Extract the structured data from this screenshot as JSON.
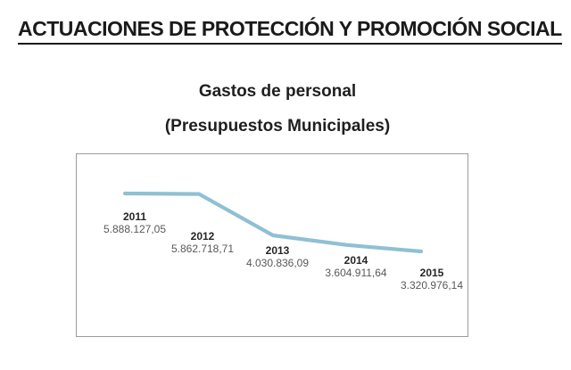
{
  "page": {
    "title": "ACTUACIONES DE PROTECCIÓN Y PROMOCIÓN SOCIAL",
    "subtitle1": "Gastos de personal",
    "subtitle2": "(Presupuestos Municipales)"
  },
  "chart_data": {
    "type": "line",
    "categories": [
      "2011",
      "2012",
      "2013",
      "2014",
      "2015"
    ],
    "values": [
      5888127.05,
      5862718.71,
      4030836.09,
      3604911.64,
      3320976.14
    ],
    "value_labels": [
      "5.888.127,05",
      "5.862.718,71",
      "4.030.836,09",
      "3.604.911,64",
      "3.320.976,14"
    ],
    "title": "Gastos de personal (Presupuestos Municipales)",
    "xlabel": "",
    "ylabel": "",
    "ylim": [
      3320976.14,
      5888127.05
    ],
    "grid": false,
    "legend": "none",
    "axes_visible": false,
    "line_color": "#8FC0D4",
    "year_label_color": "#262626",
    "value_label_color": "#595959"
  }
}
